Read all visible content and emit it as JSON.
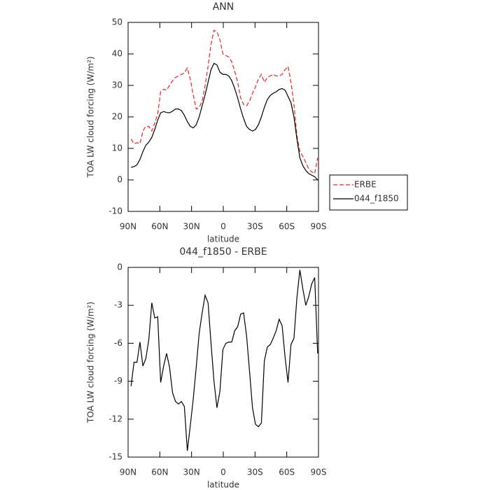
{
  "chart_data": [
    {
      "type": "line",
      "title": "ANN",
      "xlabel": "latitude",
      "ylabel": "TOA LW cloud forcing (W/m²)",
      "x": [
        87.2,
        84.4,
        81.6,
        78.8,
        76,
        73.2,
        70.4,
        67.6,
        64.8,
        62,
        59.2,
        56.4,
        53.6,
        50.8,
        48,
        45.2,
        42.4,
        39.6,
        36.8,
        34,
        31.2,
        28.4,
        25.6,
        22.8,
        20,
        17.2,
        14.4,
        11.6,
        8.8,
        6,
        3.2,
        0.4,
        -2.4,
        -5.2,
        -8,
        -10.8,
        -13.6,
        -16.4,
        -19.2,
        -22,
        -24.8,
        -27.6,
        -30.4,
        -33.2,
        -36,
        -38.8,
        -41.6,
        -44.4,
        -47.2,
        -50,
        -52.8,
        -55.6,
        -58.4,
        -61.2,
        -64,
        -66.8,
        -69.6,
        -72.4,
        -75.2,
        -78,
        -80.8,
        -83.6,
        -86.4,
        -89.2
      ],
      "series": [
        {
          "name": "ERBE",
          "color": "#e8262a",
          "linestyle": "dashed",
          "values": [
            13,
            11.5,
            11.8,
            11.5,
            15.5,
            17,
            17,
            15.5,
            18,
            21,
            28,
            28.8,
            28.5,
            30,
            31.5,
            32.5,
            33,
            33.5,
            34,
            35.5,
            32,
            27,
            22.5,
            23,
            25,
            30,
            36,
            43,
            47.5,
            47,
            44.5,
            40,
            39.5,
            39,
            37.5,
            34.5,
            31,
            26,
            24,
            23.5,
            25,
            27.5,
            29.5,
            32,
            33.5,
            31,
            32.5,
            33,
            33.5,
            33,
            33,
            33.5,
            35,
            36,
            31,
            24,
            14,
            9,
            7.5,
            5.5,
            3.5,
            2.5,
            2,
            7
          ]
        },
        {
          "name": "044_f1850",
          "color": "#000000",
          "linestyle": "solid",
          "values": [
            4,
            4.2,
            4.8,
            6.5,
            9,
            11,
            12,
            13.5,
            16,
            19,
            21.3,
            21.7,
            21.4,
            21.3,
            21.8,
            22.5,
            22.5,
            22,
            20.5,
            18.5,
            17,
            16.5,
            17.5,
            20,
            23.5,
            27,
            31,
            35,
            37,
            36.5,
            34.2,
            33.5,
            33.5,
            33,
            31.5,
            29,
            26,
            22.5,
            19.5,
            17,
            16,
            15.5,
            16,
            17.5,
            20,
            23,
            25.5,
            26.8,
            27.5,
            28,
            28.7,
            29,
            28.5,
            26.5,
            24.5,
            20,
            13,
            7,
            4.5,
            3,
            2,
            1.5,
            1,
            0
          ]
        }
      ],
      "xlim": [
        90,
        -90
      ],
      "xticks": [
        {
          "value": 90,
          "label": "90N"
        },
        {
          "value": 60,
          "label": "60N"
        },
        {
          "value": 30,
          "label": "30N"
        },
        0,
        {
          "value": -30,
          "label": "30S"
        },
        {
          "value": -60,
          "label": "60S"
        },
        {
          "value": -90,
          "label": "90S"
        }
      ],
      "ylim": [
        -10,
        50
      ],
      "yticks": [
        -10,
        0,
        10,
        20,
        30,
        40,
        50
      ],
      "legend": "right"
    },
    {
      "type": "line",
      "title": "044_f1850 - ERBE",
      "xlabel": "latitude",
      "ylabel": "TOA LW cloud forcing (W/m²)",
      "x": [
        87.2,
        84.4,
        81.6,
        78.8,
        76,
        73.2,
        70.4,
        67.6,
        64.8,
        62,
        59.2,
        56.4,
        53.6,
        50.8,
        48,
        45.2,
        42.4,
        39.6,
        36.8,
        34,
        31.2,
        28.4,
        25.6,
        22.8,
        20,
        17.2,
        14.4,
        11.6,
        8.8,
        6,
        3.2,
        0.4,
        -2.4,
        -5.2,
        -8,
        -10.8,
        -13.6,
        -16.4,
        -19.2,
        -22,
        -24.8,
        -27.6,
        -30.4,
        -33.2,
        -36,
        -38.8,
        -41.6,
        -44.4,
        -47.2,
        -50,
        -52.8,
        -55.6,
        -58.4,
        -61.2,
        -64,
        -66.8,
        -69.6,
        -72.4,
        -75.2,
        -78,
        -80.8,
        -83.6,
        -86.4,
        -89.2
      ],
      "values": [
        -9.4,
        -7.5,
        -7.5,
        -5.9,
        -7.8,
        -7.2,
        -5.7,
        -2.8,
        -4.0,
        -3.9,
        -9.1,
        -7.8,
        -6.8,
        -7.9,
        -9.9,
        -10.6,
        -10.8,
        -10.6,
        -11.0,
        -14.5,
        -12.5,
        -10.4,
        -7.9,
        -5.2,
        -3.6,
        -2.2,
        -2.8,
        -6.0,
        -9.0,
        -11.1,
        -9.8,
        -6.5,
        -6.0,
        -5.9,
        -5.9,
        -5.0,
        -4.7,
        -3.7,
        -3.6,
        -5.4,
        -8.2,
        -11.1,
        -12.4,
        -12.6,
        -12.3,
        -7.4,
        -6.3,
        -6.1,
        -5.6,
        -5.0,
        -4.1,
        -4.6,
        -7.1,
        -9.1,
        -6.1,
        -5.6,
        -2.4,
        -0.2,
        -1.7,
        -3.0,
        -2.3,
        -1.3,
        -0.8,
        -6.8
      ],
      "color": "#000000",
      "xlim": [
        90,
        -90
      ],
      "xticks": [
        {
          "value": 90,
          "label": "90N"
        },
        {
          "value": 60,
          "label": "60N"
        },
        {
          "value": 30,
          "label": "30N"
        },
        0,
        {
          "value": -30,
          "label": "30S"
        },
        {
          "value": -60,
          "label": "60S"
        },
        {
          "value": -90,
          "label": "90S"
        }
      ],
      "ylim": [
        -15,
        0
      ],
      "yticks": [
        -15,
        -12,
        -9,
        -6,
        -3,
        0
      ]
    }
  ]
}
